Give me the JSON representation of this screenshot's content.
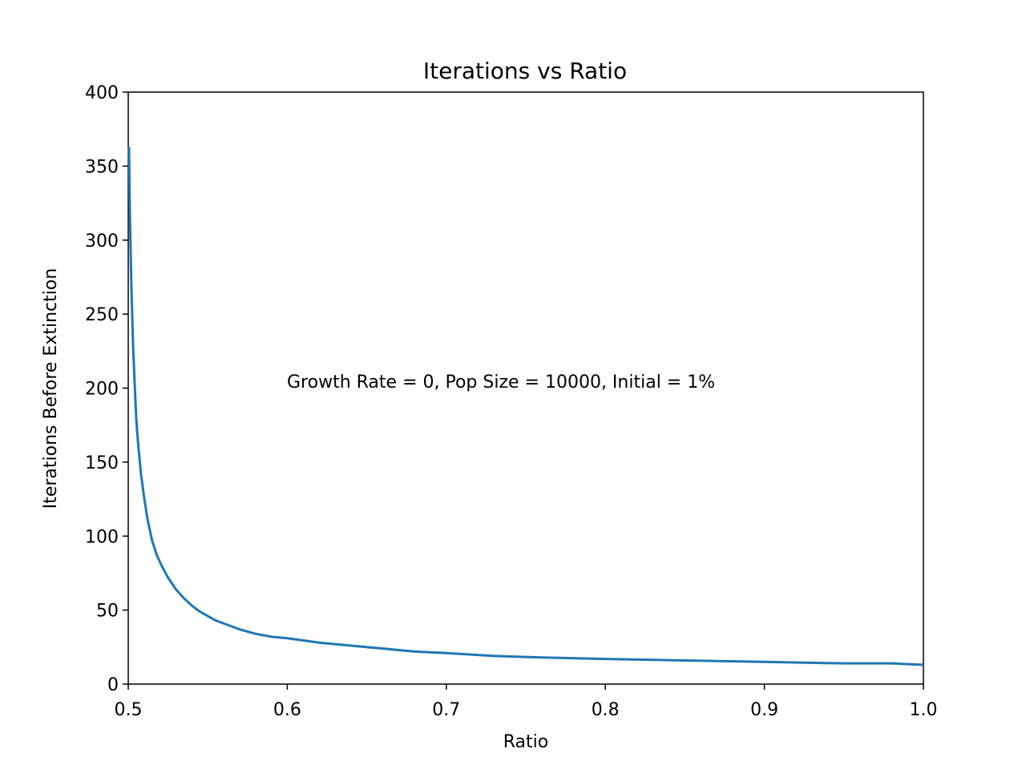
{
  "chart_data": {
    "type": "line",
    "title": "Iterations vs Ratio",
    "xlabel": "Ratio",
    "ylabel": "Iterations Before Extinction",
    "xlim": [
      0.5,
      1.0
    ],
    "ylim": [
      0,
      400
    ],
    "xticks": [
      "0.5",
      "0.6",
      "0.7",
      "0.8",
      "0.9",
      "1.0"
    ],
    "yticks": [
      "0",
      "50",
      "100",
      "150",
      "200",
      "250",
      "300",
      "350",
      "400"
    ],
    "grid": false,
    "annotation": "Growth Rate = 0, Pop Size = 10000, Initial = 1%",
    "line_color": "#1f77b4",
    "series": [
      {
        "x": [
          0.5005,
          0.501,
          0.502,
          0.503,
          0.504,
          0.505,
          0.506,
          0.508,
          0.51,
          0.512,
          0.515,
          0.518,
          0.521,
          0.525,
          0.53,
          0.535,
          0.54,
          0.545,
          0.55,
          0.555,
          0.56,
          0.57,
          0.58,
          0.59,
          0.6,
          0.62,
          0.64,
          0.66,
          0.68,
          0.7,
          0.73,
          0.76,
          0.8,
          0.85,
          0.9,
          0.95,
          0.98,
          1.0
        ],
        "y": [
          363,
          320,
          268,
          230,
          204,
          180,
          165,
          142,
          126,
          112,
          97,
          87,
          80,
          72,
          64,
          58,
          53,
          49,
          46,
          43,
          41,
          37,
          34,
          32,
          31,
          28,
          26,
          24,
          22,
          21,
          19,
          18,
          17,
          16,
          15,
          14,
          14,
          13
        ]
      }
    ]
  }
}
